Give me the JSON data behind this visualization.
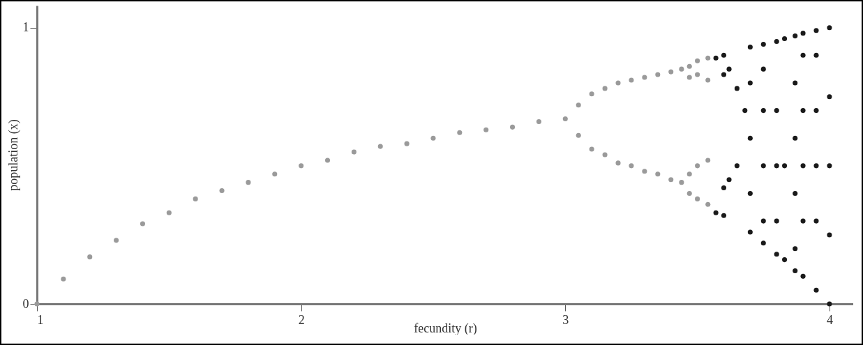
{
  "chart_data": {
    "type": "scatter",
    "xlabel": "fecundity (r)",
    "ylabel": "population (x)",
    "xlim": [
      1,
      4.09
    ],
    "ylim": [
      0,
      1.08
    ],
    "xticks": [
      1,
      2,
      3,
      4
    ],
    "yticks": [
      0,
      1
    ],
    "grid": false,
    "legend": false,
    "marker": "circle",
    "series": [
      {
        "color": "#9a9a9a",
        "x": [
          1.0,
          1.1,
          1.2,
          1.3,
          1.4,
          1.5,
          1.6,
          1.7,
          1.8,
          1.9,
          2.0,
          2.1,
          2.2,
          2.3,
          2.4,
          2.5,
          2.6,
          2.7,
          2.8,
          2.9,
          3.0,
          3.05,
          3.05,
          3.1,
          3.1,
          3.15,
          3.15,
          3.2,
          3.2,
          3.25,
          3.25,
          3.3,
          3.3,
          3.35,
          3.35,
          3.4,
          3.4,
          3.44,
          3.44,
          3.47,
          3.47,
          3.47,
          3.47,
          3.5,
          3.5,
          3.5,
          3.5,
          3.54,
          3.54,
          3.54,
          3.54
        ],
        "values": [
          0,
          0.09,
          0.17,
          0.23,
          0.29,
          0.33,
          0.38,
          0.41,
          0.44,
          0.47,
          0.5,
          0.52,
          0.55,
          0.57,
          0.58,
          0.6,
          0.62,
          0.63,
          0.64,
          0.66,
          0.67,
          0.72,
          0.61,
          0.76,
          0.56,
          0.78,
          0.54,
          0.8,
          0.51,
          0.81,
          0.5,
          0.82,
          0.48,
          0.83,
          0.47,
          0.84,
          0.45,
          0.85,
          0.44,
          0.86,
          0.82,
          0.47,
          0.4,
          0.88,
          0.83,
          0.5,
          0.38,
          0.89,
          0.81,
          0.52,
          0.36
        ]
      },
      {
        "color": "#1a1a1a",
        "x": [
          3.57,
          3.57,
          3.6,
          3.6,
          3.6,
          3.6,
          3.62,
          3.62,
          3.65,
          3.65,
          3.68,
          3.7,
          3.7,
          3.7,
          3.7,
          3.7,
          3.75,
          3.75,
          3.75,
          3.75,
          3.75,
          3.75,
          3.8,
          3.8,
          3.8,
          3.8,
          3.8,
          3.83,
          3.83,
          3.83,
          3.87,
          3.87,
          3.87,
          3.87,
          3.87,
          3.87,
          3.9,
          3.9,
          3.9,
          3.9,
          3.9,
          3.9,
          3.95,
          3.95,
          3.95,
          3.95,
          3.95,
          3.95,
          4.0,
          4.0,
          4.0,
          4.0,
          4.0
        ],
        "values": [
          0.89,
          0.33,
          0.9,
          0.32,
          0.42,
          0.83,
          0.45,
          0.85,
          0.5,
          0.78,
          0.7,
          0.93,
          0.26,
          0.4,
          0.6,
          0.8,
          0.94,
          0.22,
          0.3,
          0.5,
          0.7,
          0.85,
          0.95,
          0.18,
          0.3,
          0.5,
          0.7,
          0.96,
          0.16,
          0.5,
          0.97,
          0.12,
          0.2,
          0.4,
          0.6,
          0.8,
          0.98,
          0.1,
          0.3,
          0.5,
          0.7,
          0.9,
          0.99,
          0.05,
          0.3,
          0.5,
          0.7,
          0.9,
          1.0,
          0.0,
          0.25,
          0.5,
          0.75
        ]
      }
    ]
  }
}
